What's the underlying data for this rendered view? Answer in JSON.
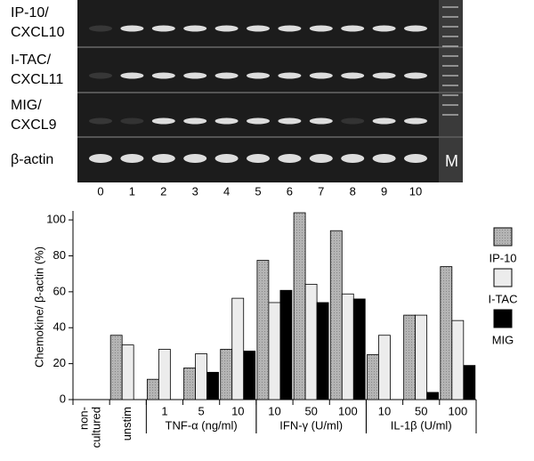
{
  "gel": {
    "rows": [
      [
        "IP-10/",
        "CXCL10"
      ],
      [
        "I-TAC/",
        "CXCL11"
      ],
      [
        "MIG/",
        "CXCL9"
      ],
      [
        "β-actin"
      ]
    ],
    "lanes": [
      "0",
      "1",
      "2",
      "3",
      "4",
      "5",
      "6",
      "7",
      "8",
      "9",
      "10"
    ],
    "marker": "M"
  },
  "chart_data": {
    "type": "bar",
    "y_label": "Chemokine/ β-actin (%)",
    "categories": [
      "non-cultured",
      "unstim",
      "1",
      "5",
      "10",
      "10",
      "50",
      "100",
      "10",
      "50",
      "100"
    ],
    "category_groups": [
      null,
      null,
      "TNF-α (ng/ml)",
      "TNF-α (ng/ml)",
      "TNF-α (ng/ml)",
      "IFN-γ (U/ml)",
      "IFN-γ (U/ml)",
      "IFN-γ (U/ml)",
      "IL-1β (U/ml)",
      "IL-1β (U/ml)",
      "IL-1β (U/ml)"
    ],
    "series": [
      {
        "name": "IP-10",
        "color": "#b4b4b4",
        "values": [
          0,
          35.8,
          11.3,
          17.6,
          28,
          77.5,
          104,
          94,
          25,
          47,
          74
        ]
      },
      {
        "name": "I-TAC",
        "color": "#ececec",
        "values": [
          0,
          30.4,
          28,
          25.5,
          56.4,
          54,
          64.2,
          58.8,
          35.8,
          47,
          44
        ]
      },
      {
        "name": "MIG",
        "color": "#000000",
        "values": [
          0,
          0,
          0,
          15.2,
          27,
          60.8,
          54,
          56,
          0,
          4,
          19
        ]
      }
    ],
    "ylim": [
      0,
      105
    ],
    "yticks": [
      0,
      20,
      40,
      60,
      80,
      100
    ],
    "grid": false,
    "legend": "right"
  }
}
